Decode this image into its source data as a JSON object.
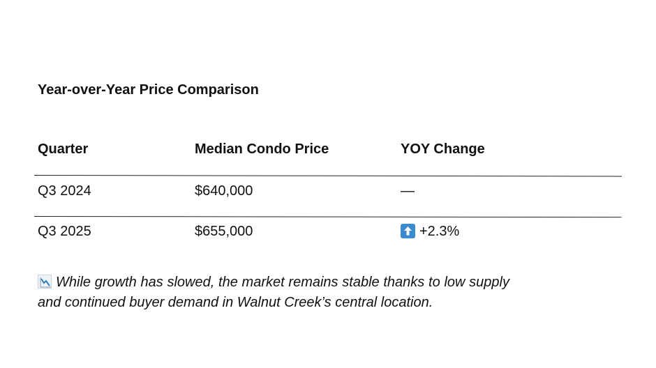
{
  "section": {
    "title": "Year-over-Year Price Comparison"
  },
  "table": {
    "headers": {
      "quarter": "Quarter",
      "price": "Median Condo Price",
      "change": "YOY Change"
    },
    "rows": [
      {
        "quarter": "Q3 2024",
        "price": "$640,000",
        "change": "—",
        "change_icon": ""
      },
      {
        "quarter": "Q3 2025",
        "price": "$655,000",
        "change": "+2.3%",
        "change_icon": "up-arrow-icon"
      }
    ]
  },
  "note": {
    "icon": "chart-decreasing-icon",
    "text": "While growth has slowed, the market remains stable thanks to low supply and continued buyer demand in Walnut Creek’s central location."
  },
  "colors": {
    "arrow_badge": "#3b8bd0",
    "text": "#111111",
    "rule": "#222222"
  }
}
